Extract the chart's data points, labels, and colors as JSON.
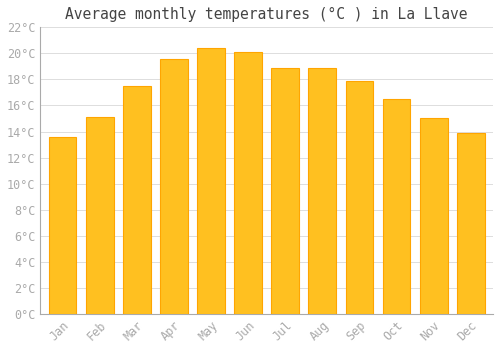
{
  "title": "Average monthly temperatures (°C ) in La Llave",
  "months": [
    "Jan",
    "Feb",
    "Mar",
    "Apr",
    "May",
    "Jun",
    "Jul",
    "Aug",
    "Sep",
    "Oct",
    "Nov",
    "Dec"
  ],
  "temperatures": [
    13.6,
    15.1,
    17.5,
    19.6,
    20.4,
    20.1,
    18.9,
    18.9,
    17.9,
    16.5,
    15.0,
    13.9
  ],
  "bar_color": "#FFC020",
  "bar_edge_color": "#FFA500",
  "background_color": "#FFFFFF",
  "grid_color": "#DDDDDD",
  "text_color": "#AAAAAA",
  "title_color": "#444444",
  "ylim": [
    0,
    22
  ],
  "ytick_step": 2,
  "title_fontsize": 10.5,
  "tick_fontsize": 8.5,
  "font_family": "monospace"
}
